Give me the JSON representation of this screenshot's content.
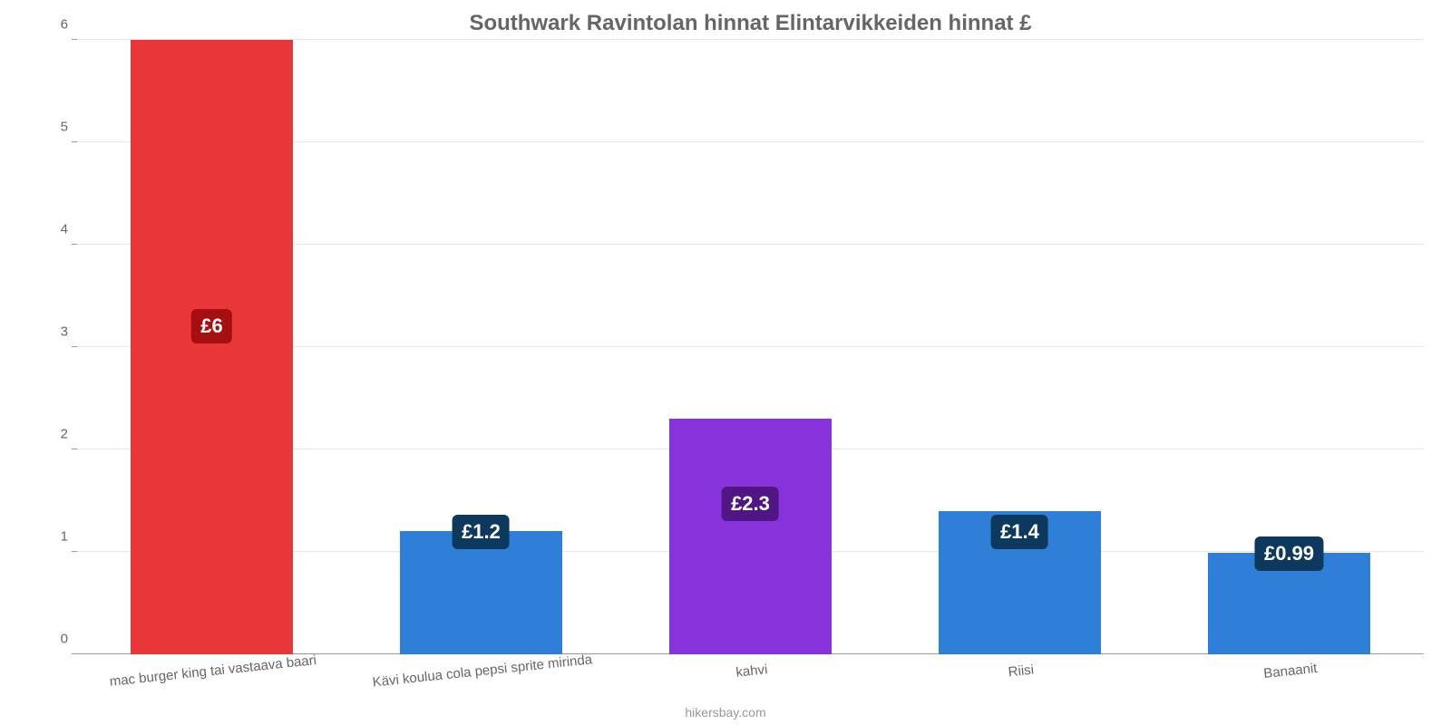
{
  "chart": {
    "type": "bar",
    "title": "Southwark Ravintolan hinnat Elintarvikkeiden hinnat £",
    "title_color": "#666666",
    "title_fontsize": 24,
    "ylim": [
      0,
      6
    ],
    "ytick_step": 1,
    "ytick_color": "#666666",
    "ytick_fontsize": 15,
    "grid_color": "#e6e6e6",
    "axis_color": "#999999",
    "background_color": "#ffffff",
    "bar_width_pct": 12,
    "x_label_rotation_deg": -6,
    "value_label_fontsize": 22,
    "value_label_color": "#ffffff",
    "value_badge_radius": 6,
    "bars": [
      {
        "category": "mac burger king tai vastaava baari",
        "value": 6,
        "display": "£6",
        "bar_color": "#eb3639",
        "badge_bg": "#a60f11",
        "label_center_pos_pct": 0.535
      },
      {
        "category": "Kävi koulua cola pepsi sprite mirinda",
        "value": 1.2,
        "display": "£1.2",
        "bar_color": "#2f7ed8",
        "badge_bg": "#0e395e",
        "label_center_pos_pct": 1.0
      },
      {
        "category": "kahvi",
        "value": 2.3,
        "display": "£2.3",
        "bar_color": "#8832dc",
        "badge_bg": "#501684",
        "label_center_pos_pct": 0.64
      },
      {
        "category": "Riisi",
        "value": 1.4,
        "display": "£1.4",
        "bar_color": "#2f7ed8",
        "badge_bg": "#0e395e",
        "label_center_pos_pct": 0.86
      },
      {
        "category": "Banaanit",
        "value": 0.99,
        "display": "£0.99",
        "bar_color": "#2f7ed8",
        "badge_bg": "#0e395e",
        "label_center_pos_pct": 1.0
      }
    ],
    "source_text": "hikersbay.com",
    "source_color": "#999999",
    "source_fontsize": 14
  }
}
